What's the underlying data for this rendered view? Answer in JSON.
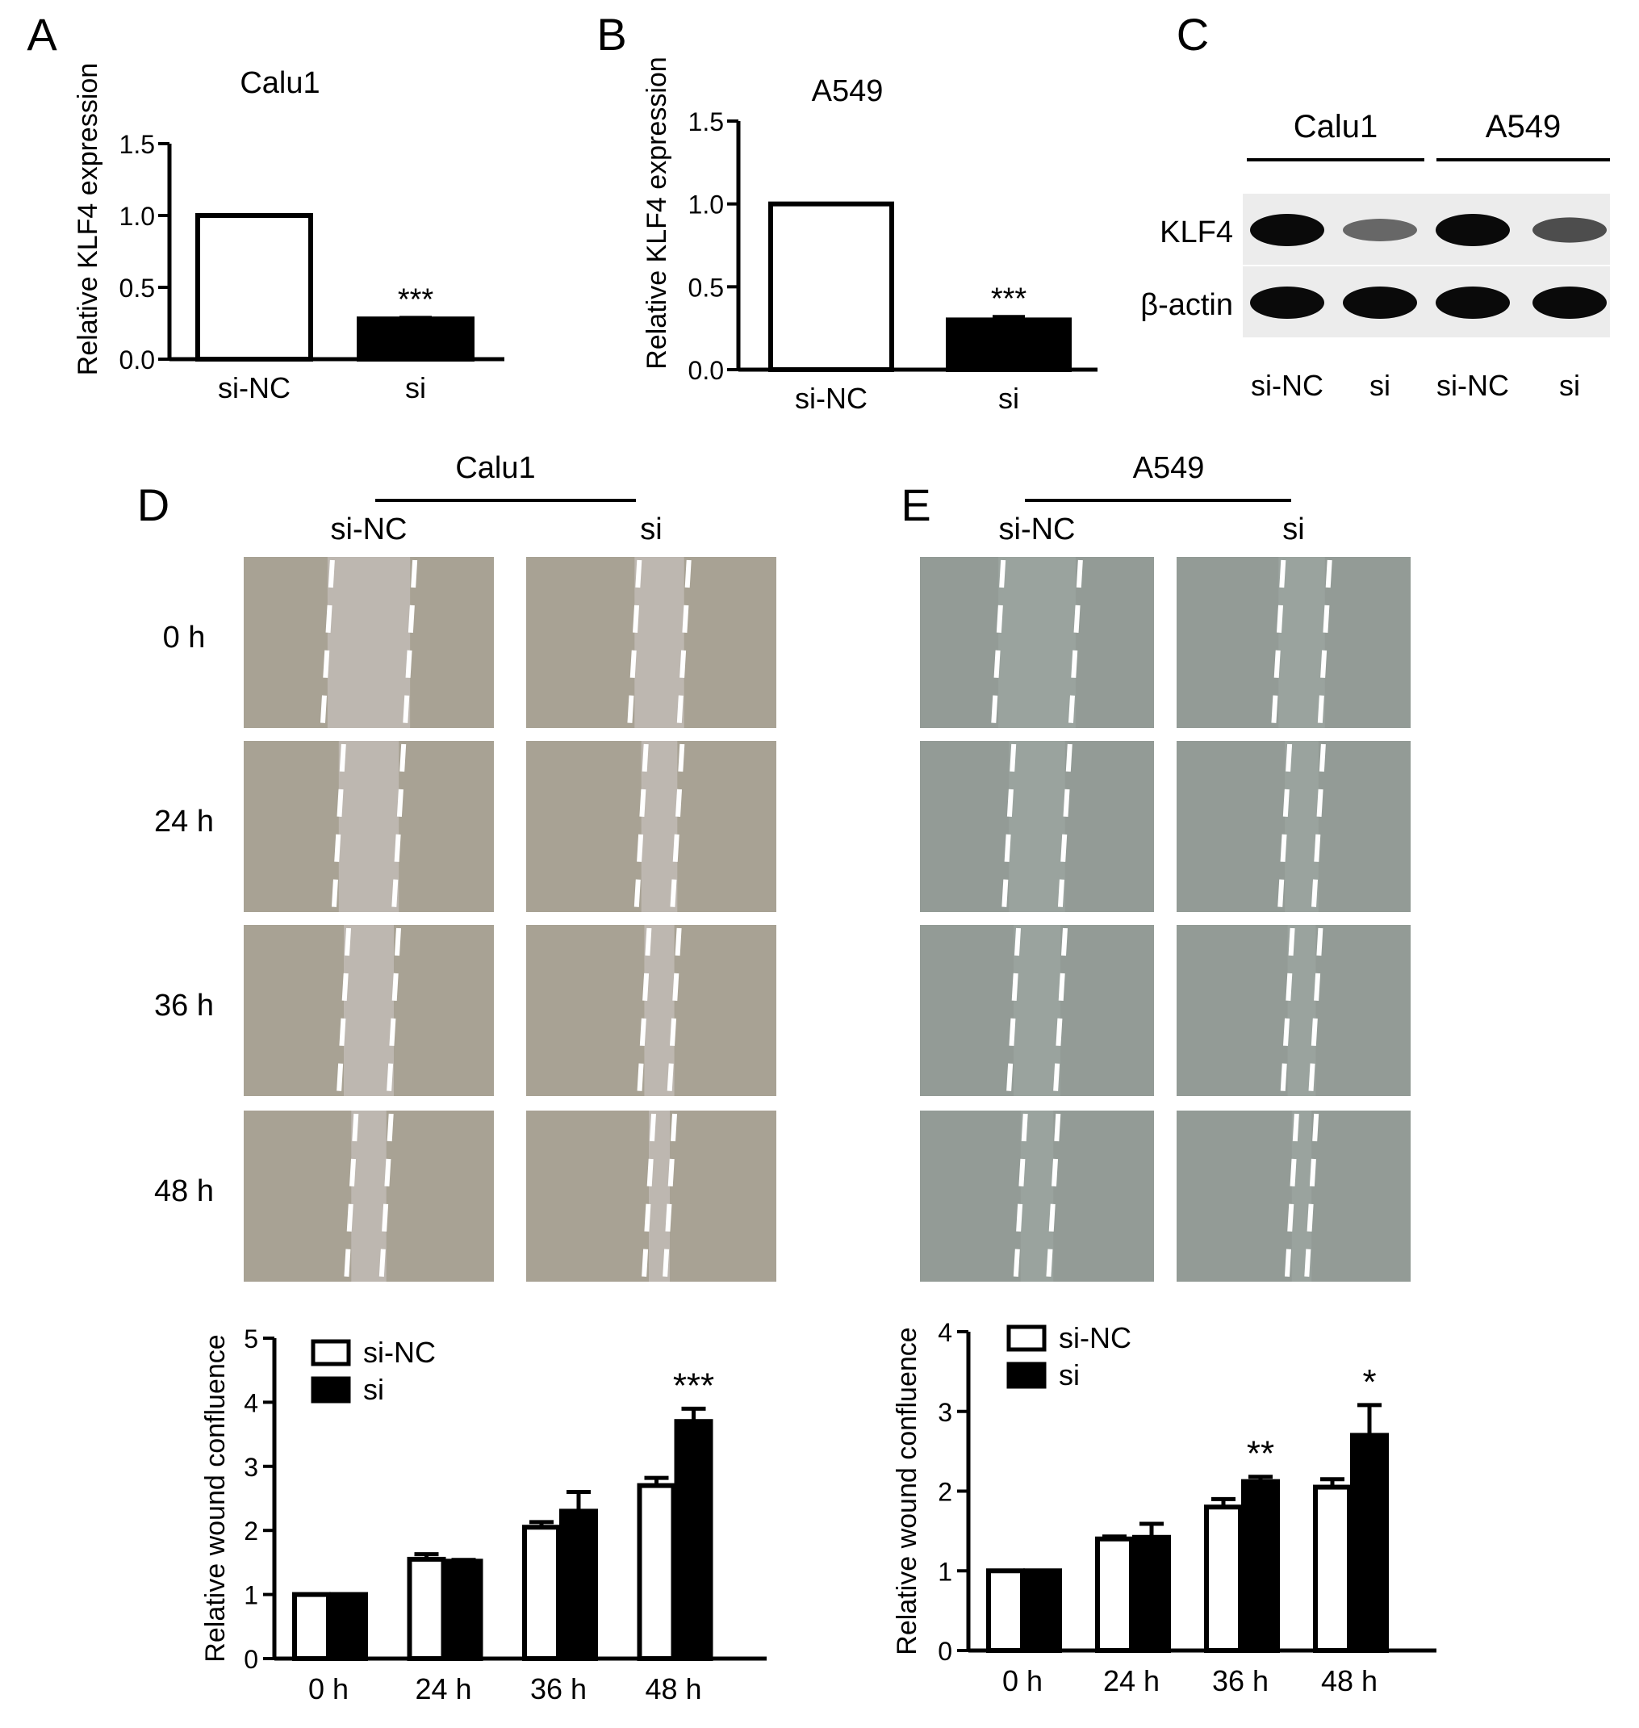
{
  "panels": {
    "A": {
      "label": "A",
      "chart_data": {
        "type": "bar",
        "title": "Calu1",
        "ylabel": "Relative KLF4 expression",
        "categories": [
          "si-NC",
          "si"
        ],
        "values": [
          1.0,
          0.28
        ],
        "errors": [
          0.0,
          0.01
        ],
        "fill": [
          "white",
          "black"
        ],
        "significance": [
          "",
          "***"
        ],
        "ylim": [
          0,
          1.5
        ],
        "yticks": [
          "0.0",
          "0.5",
          "1.0",
          "1.5"
        ]
      }
    },
    "B": {
      "label": "B",
      "chart_data": {
        "type": "bar",
        "title": "A549",
        "ylabel": "Relative KLF4 expression",
        "categories": [
          "si-NC",
          "si"
        ],
        "values": [
          1.0,
          0.3
        ],
        "errors": [
          0.0,
          0.02
        ],
        "fill": [
          "white",
          "black"
        ],
        "significance": [
          "",
          "***"
        ],
        "ylim": [
          0,
          1.5
        ],
        "yticks": [
          "0.0",
          "0.5",
          "1.0",
          "1.5"
        ]
      }
    },
    "C": {
      "label": "C",
      "groups": [
        "Calu1",
        "A549"
      ],
      "rows": [
        "KLF4",
        "β-actin"
      ],
      "lanes": [
        "si-NC",
        "si",
        "si-NC",
        "si"
      ],
      "band_intensity": {
        "KLF4": [
          1.0,
          0.45,
          1.0,
          0.6
        ],
        "β-actin": [
          1.0,
          1.0,
          1.0,
          1.0
        ]
      }
    },
    "D": {
      "label": "D",
      "cell_line": "Calu1",
      "conditions": [
        "si-NC",
        "si"
      ],
      "timepoints": [
        "0 h",
        "24 h",
        "36 h",
        "48 h"
      ],
      "image_color": "#a8a294",
      "gap_color": "#bdb7b0",
      "chart_data": {
        "type": "bar",
        "ylabel": "Relative wound confluence",
        "categories": [
          "0 h",
          "24 h",
          "36 h",
          "48 h"
        ],
        "series": [
          {
            "name": "si-NC",
            "fill": "white",
            "values": [
              1.0,
              1.55,
              2.05,
              2.7
            ],
            "errors": [
              0.0,
              0.08,
              0.08,
              0.12
            ]
          },
          {
            "name": "si",
            "fill": "black",
            "values": [
              1.0,
              1.52,
              2.3,
              3.7
            ],
            "errors": [
              0.0,
              0.02,
              0.3,
              0.2
            ]
          }
        ],
        "significance": [
          "",
          "",
          "",
          "***"
        ],
        "ylim": [
          0,
          5
        ],
        "yticks": [
          "0",
          "1",
          "2",
          "3",
          "4",
          "5"
        ],
        "legend": "top-left"
      }
    },
    "E": {
      "label": "E",
      "cell_line": "A549",
      "conditions": [
        "si-NC",
        "si"
      ],
      "timepoints": [
        "0 h",
        "24 h",
        "36 h",
        "48 h"
      ],
      "image_color": "#939b96",
      "gap_color": "#9aa39e",
      "chart_data": {
        "type": "bar",
        "ylabel": "Relative wound confluence",
        "categories": [
          "0 h",
          "24 h",
          "36 h",
          "48 h"
        ],
        "series": [
          {
            "name": "si-NC",
            "fill": "white",
            "values": [
              1.0,
              1.4,
              1.8,
              2.05
            ],
            "errors": [
              0.0,
              0.03,
              0.1,
              0.1
            ]
          },
          {
            "name": "si",
            "fill": "black",
            "values": [
              1.0,
              1.42,
              2.12,
              2.7
            ],
            "errors": [
              0.0,
              0.17,
              0.06,
              0.38
            ]
          }
        ],
        "significance": [
          "",
          "",
          "**",
          "*"
        ],
        "ylim": [
          0,
          4
        ],
        "yticks": [
          "0",
          "1",
          "2",
          "3",
          "4"
        ],
        "legend": "top-left"
      }
    }
  }
}
